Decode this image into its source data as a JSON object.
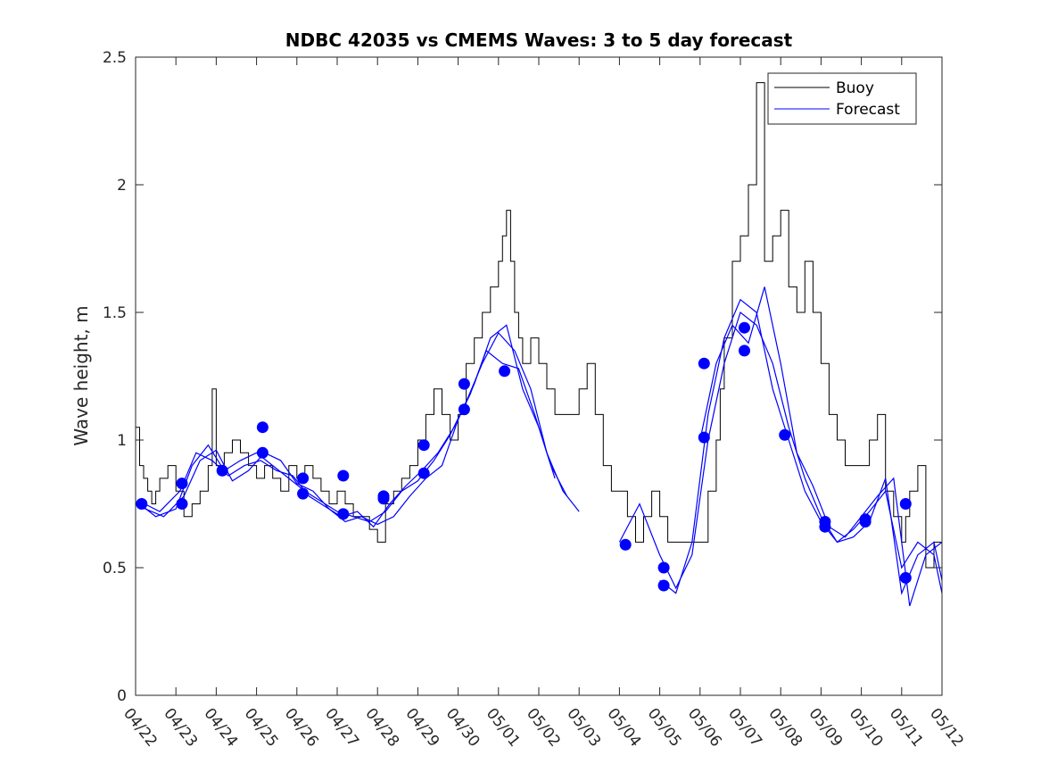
{
  "chart_data": {
    "type": "line",
    "title": "NDBC 42035 vs CMEMS Waves: 3 to 5 day forecast",
    "xlabel": "",
    "ylabel": "Wave height, m",
    "xlim": [
      0,
      20
    ],
    "ylim": [
      0,
      2.5
    ],
    "categories": [
      "04/22",
      "04/23",
      "04/24",
      "04/25",
      "04/26",
      "04/27",
      "04/28",
      "04/29",
      "04/30",
      "05/01",
      "05/02",
      "05/03",
      "05/04",
      "05/05",
      "05/06",
      "05/07",
      "05/08",
      "05/09",
      "05/10",
      "05/11",
      "05/12"
    ],
    "yticks": [
      "0",
      "0.5",
      "1",
      "1.5",
      "2",
      "2.5"
    ],
    "legend_position": "top-right",
    "grid": false,
    "colors": {
      "buoy": "#000000",
      "forecast": "#0000ff"
    },
    "buoy": {
      "name": "Buoy",
      "x": [
        0,
        0.1,
        0.2,
        0.3,
        0.4,
        0.5,
        0.6,
        0.8,
        1.0,
        1.2,
        1.4,
        1.6,
        1.8,
        1.9,
        2.0,
        2.2,
        2.4,
        2.6,
        2.8,
        3.0,
        3.2,
        3.4,
        3.6,
        3.8,
        4.0,
        4.2,
        4.4,
        4.6,
        4.8,
        5.0,
        5.2,
        5.4,
        5.6,
        5.8,
        6.0,
        6.2,
        6.4,
        6.6,
        6.8,
        7.0,
        7.2,
        7.4,
        7.6,
        7.8,
        8.0,
        8.2,
        8.4,
        8.6,
        8.8,
        9.0,
        9.1,
        9.2,
        9.3,
        9.4,
        9.5,
        9.6,
        9.8,
        10.0,
        10.2,
        10.4,
        10.6,
        10.8,
        11.0,
        11.2,
        11.4,
        11.6,
        11.8,
        12.0,
        12.2,
        12.4,
        12.6,
        12.8,
        13.0,
        13.2,
        13.4,
        13.6,
        13.8,
        14.0,
        14.2,
        14.4,
        14.5,
        14.6,
        14.8,
        15.0,
        15.2,
        15.4,
        15.6,
        15.8,
        16.0,
        16.2,
        16.4,
        16.6,
        16.8,
        17.0,
        17.2,
        17.4,
        17.6,
        17.8,
        18.0,
        18.2,
        18.4,
        18.6,
        18.8,
        19.0,
        19.1,
        19.2,
        19.4,
        19.6,
        19.8,
        20.0
      ],
      "y": [
        1.05,
        0.9,
        0.85,
        0.8,
        0.75,
        0.8,
        0.85,
        0.9,
        0.8,
        0.7,
        0.75,
        0.8,
        0.9,
        1.2,
        0.9,
        0.95,
        1.0,
        0.95,
        0.9,
        0.85,
        0.9,
        0.85,
        0.8,
        0.9,
        0.85,
        0.9,
        0.85,
        0.8,
        0.75,
        0.8,
        0.75,
        0.7,
        0.7,
        0.65,
        0.6,
        0.75,
        0.8,
        0.85,
        0.9,
        1.0,
        1.1,
        1.2,
        1.1,
        1.0,
        1.1,
        1.3,
        1.4,
        1.5,
        1.6,
        1.7,
        1.8,
        1.9,
        1.7,
        1.5,
        1.4,
        1.3,
        1.4,
        1.3,
        1.2,
        1.1,
        1.1,
        1.1,
        1.2,
        1.3,
        1.1,
        0.9,
        0.8,
        0.8,
        0.7,
        0.6,
        0.7,
        0.8,
        0.7,
        0.6,
        0.6,
        0.6,
        0.6,
        0.6,
        0.8,
        1.0,
        1.2,
        1.4,
        1.7,
        1.8,
        2.0,
        2.4,
        1.7,
        1.8,
        1.9,
        1.6,
        1.5,
        1.7,
        1.5,
        1.3,
        1.1,
        1.0,
        0.9,
        0.9,
        0.9,
        1.0,
        1.1,
        0.8,
        0.7,
        0.6,
        0.7,
        0.8,
        0.9,
        0.5,
        0.6,
        0.5
      ]
    },
    "forecast_points": [
      {
        "x": 0.15,
        "y": 0.75
      },
      {
        "x": 1.15,
        "y": 0.83
      },
      {
        "x": 1.15,
        "y": 0.75
      },
      {
        "x": 2.15,
        "y": 0.88
      },
      {
        "x": 3.15,
        "y": 1.05
      },
      {
        "x": 3.15,
        "y": 0.95
      },
      {
        "x": 4.15,
        "y": 0.85
      },
      {
        "x": 4.15,
        "y": 0.79
      },
      {
        "x": 5.15,
        "y": 0.86
      },
      {
        "x": 5.15,
        "y": 0.71
      },
      {
        "x": 6.15,
        "y": 0.78
      },
      {
        "x": 6.15,
        "y": 0.77
      },
      {
        "x": 7.15,
        "y": 0.98
      },
      {
        "x": 7.15,
        "y": 0.87
      },
      {
        "x": 8.15,
        "y": 1.22
      },
      {
        "x": 8.15,
        "y": 1.12
      },
      {
        "x": 9.15,
        "y": 1.27
      },
      {
        "x": 12.15,
        "y": 0.59
      },
      {
        "x": 13.1,
        "y": 0.5
      },
      {
        "x": 13.1,
        "y": 0.43
      },
      {
        "x": 14.1,
        "y": 1.3
      },
      {
        "x": 14.1,
        "y": 1.01
      },
      {
        "x": 15.1,
        "y": 1.44
      },
      {
        "x": 15.1,
        "y": 1.35
      },
      {
        "x": 16.1,
        "y": 1.02
      },
      {
        "x": 17.1,
        "y": 0.68
      },
      {
        "x": 17.1,
        "y": 0.66
      },
      {
        "x": 18.1,
        "y": 0.69
      },
      {
        "x": 18.1,
        "y": 0.68
      },
      {
        "x": 19.1,
        "y": 0.75
      },
      {
        "x": 19.1,
        "y": 0.46
      }
    ],
    "forecast_lines": [
      {
        "name": "Forecast",
        "x": [
          0.1,
          0.5,
          1.0,
          1.4,
          1.8,
          2.2,
          2.6,
          3.0,
          3.4,
          3.8,
          4.2,
          4.6,
          5.0,
          5.4,
          5.8,
          6.2,
          6.6,
          7.0,
          7.4,
          7.8,
          8.2,
          8.6,
          9.0,
          9.4,
          9.8,
          10.2,
          10.6,
          11.0
        ],
        "y": [
          0.75,
          0.7,
          0.73,
          0.9,
          0.98,
          0.88,
          0.92,
          0.95,
          0.9,
          0.85,
          0.8,
          0.76,
          0.72,
          0.7,
          0.68,
          0.72,
          0.8,
          0.84,
          0.92,
          1.02,
          1.15,
          1.3,
          1.42,
          1.35,
          1.2,
          0.95,
          0.8,
          0.72
        ]
      },
      {
        "name": "",
        "x": [
          0.1,
          0.6,
          1.1,
          1.5,
          1.9,
          2.3,
          2.7,
          3.1,
          3.5,
          3.9,
          4.3,
          4.7,
          5.1,
          5.5,
          5.9,
          6.3,
          6.7,
          7.1,
          7.5,
          7.9,
          8.3,
          8.7,
          9.1,
          9.5,
          9.9,
          10.3,
          10.7
        ],
        "y": [
          0.76,
          0.72,
          0.8,
          0.95,
          0.92,
          0.86,
          0.9,
          0.92,
          0.88,
          0.86,
          0.78,
          0.74,
          0.7,
          0.72,
          0.66,
          0.75,
          0.82,
          0.88,
          0.95,
          1.05,
          1.18,
          1.35,
          1.3,
          1.28,
          1.1,
          0.9,
          0.78
        ]
      },
      {
        "name": "",
        "x": [
          0.1,
          0.7,
          1.2,
          1.6,
          2.0,
          2.4,
          2.8,
          3.2,
          3.6,
          4.0,
          4.4,
          4.8,
          5.2,
          5.6,
          6.0,
          6.4,
          6.8,
          7.2,
          7.6,
          8.0,
          8.4,
          8.8,
          9.2,
          9.6,
          10.0,
          10.4
        ],
        "y": [
          0.74,
          0.7,
          0.78,
          0.92,
          0.96,
          0.84,
          0.88,
          0.95,
          0.92,
          0.83,
          0.8,
          0.73,
          0.68,
          0.7,
          0.67,
          0.7,
          0.78,
          0.85,
          0.9,
          1.08,
          1.22,
          1.4,
          1.45,
          1.2,
          1.05,
          0.85
        ]
      },
      {
        "name": "",
        "x": [
          12.0,
          12.5,
          13.0,
          13.4,
          13.8,
          14.2,
          14.6,
          15.0,
          15.4,
          15.8,
          16.2,
          16.6,
          17.0,
          17.4,
          17.8,
          18.2,
          18.6,
          19.0,
          19.4,
          19.8,
          20.0
        ],
        "y": [
          0.6,
          0.75,
          0.55,
          0.42,
          0.55,
          1.0,
          1.3,
          1.5,
          1.45,
          1.3,
          1.05,
          0.85,
          0.7,
          0.6,
          0.65,
          0.72,
          0.8,
          0.5,
          0.6,
          0.55,
          0.4
        ]
      },
      {
        "name": "",
        "x": [
          13.0,
          13.4,
          13.8,
          14.2,
          14.6,
          15.0,
          15.4,
          15.8,
          16.2,
          16.6,
          17.0,
          17.4,
          17.8,
          18.2,
          18.6,
          19.0,
          19.4,
          19.8,
          20.0
        ],
        "y": [
          0.45,
          0.4,
          0.6,
          1.1,
          1.4,
          1.55,
          1.5,
          1.2,
          1.0,
          0.8,
          0.68,
          0.6,
          0.62,
          0.68,
          0.85,
          0.4,
          0.55,
          0.6,
          0.45
        ]
      },
      {
        "name": "",
        "x": [
          14.0,
          14.4,
          14.8,
          15.2,
          15.6,
          16.0,
          16.4,
          16.8,
          17.2,
          17.6,
          18.0,
          18.4,
          18.8,
          19.2,
          19.6,
          20.0
        ],
        "y": [
          1.0,
          1.3,
          1.45,
          1.38,
          1.6,
          1.3,
          0.95,
          0.82,
          0.66,
          0.62,
          0.7,
          0.78,
          0.85,
          0.35,
          0.55,
          0.6
        ]
      }
    ]
  },
  "legend": [
    {
      "label": "Buoy",
      "color": "#000000"
    },
    {
      "label": "Forecast",
      "color": "#0000ff"
    }
  ]
}
